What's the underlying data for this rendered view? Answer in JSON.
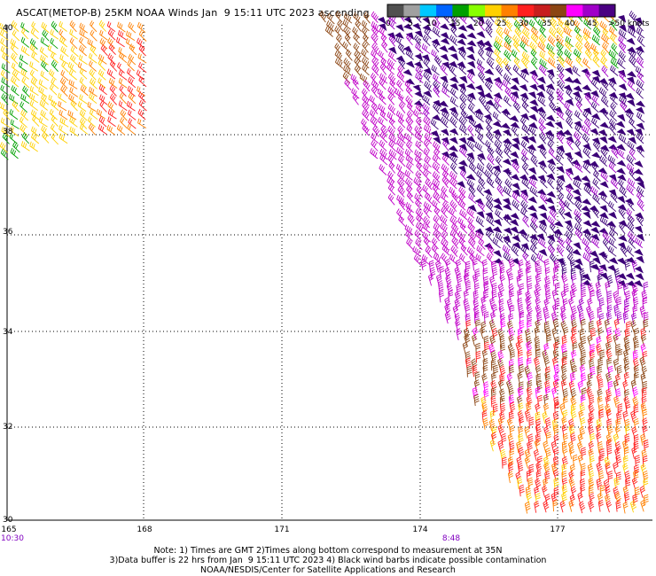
{
  "title": "ASCAT(METOP-B) 25KM NOAA Winds Jan  9 15:11 UTC 2023 ascending",
  "legend": {
    "ticks": [
      "0",
      "5",
      "10",
      "15",
      "20",
      "25",
      "30",
      "35",
      "40",
      "45",
      ">50 knots"
    ],
    "colors": [
      "#505050",
      "#a0a0a0",
      "#00c8ff",
      "#0064ff",
      "#00a000",
      "#88ff00",
      "#ffd000",
      "#ff8000",
      "#ff2020",
      "#c81e1e",
      "#8b4513",
      "#ff00ff",
      "#a000c8",
      "#4b0082"
    ]
  },
  "axes": {
    "lon_labels": [
      "165",
      "168",
      "171",
      "174",
      "177"
    ],
    "lat_labels": [
      "40",
      "38",
      "36",
      "34",
      "32",
      "30"
    ]
  },
  "time_labels": {
    "left": "10:30",
    "right": "8:48",
    "color": "#8000c0"
  },
  "footer": {
    "line1": "Note: 1) Times are GMT 2)Times along bottom correspond to measurement at 35N",
    "line2": "3)Data buffer is 22 hrs from Jan  9 15:11 UTC 2023 4) Black wind barbs indicate possible contamination",
    "line3": "NOAA/NESDIS/Center for Satellite Applications and Research"
  }
}
